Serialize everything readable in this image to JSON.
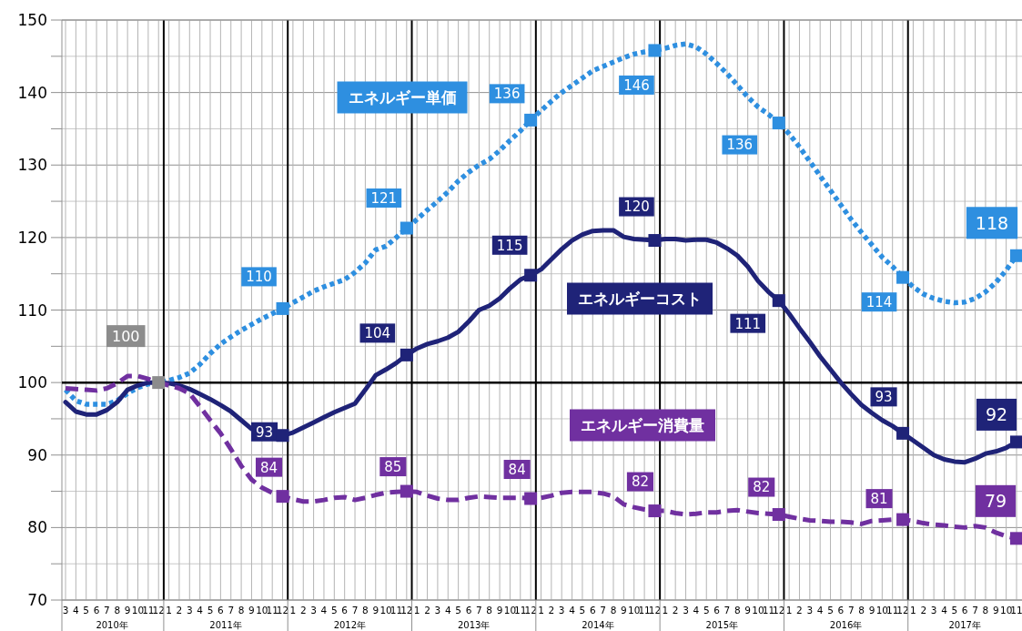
{
  "chart_data": {
    "type": "line",
    "x": [
      "2010-03",
      "2010-04",
      "2010-05",
      "2010-06",
      "2010-07",
      "2010-08",
      "2010-09",
      "2010-10",
      "2010-11",
      "2010-12",
      "2011-01",
      "2011-02",
      "2011-03",
      "2011-04",
      "2011-05",
      "2011-06",
      "2011-07",
      "2011-08",
      "2011-09",
      "2011-10",
      "2011-11",
      "2011-12",
      "2012-01",
      "2012-02",
      "2012-03",
      "2012-04",
      "2012-05",
      "2012-06",
      "2012-07",
      "2012-08",
      "2012-09",
      "2012-10",
      "2012-11",
      "2012-12",
      "2013-01",
      "2013-02",
      "2013-03",
      "2013-04",
      "2013-05",
      "2013-06",
      "2013-07",
      "2013-08",
      "2013-09",
      "2013-10",
      "2013-11",
      "2013-12",
      "2014-01",
      "2014-02",
      "2014-03",
      "2014-04",
      "2014-05",
      "2014-06",
      "2014-07",
      "2014-08",
      "2014-09",
      "2014-10",
      "2014-11",
      "2014-12",
      "2015-01",
      "2015-02",
      "2015-03",
      "2015-04",
      "2015-05",
      "2015-06",
      "2015-07",
      "2015-08",
      "2015-09",
      "2015-10",
      "2015-11",
      "2015-12",
      "2016-01",
      "2016-02",
      "2016-03",
      "2016-04",
      "2016-05",
      "2016-06",
      "2016-07",
      "2016-08",
      "2016-09",
      "2016-10",
      "2016-11",
      "2016-12",
      "2017-01",
      "2017-02",
      "2017-03",
      "2017-04",
      "2017-05",
      "2017-06",
      "2017-07",
      "2017-08",
      "2017-09",
      "2017-10",
      "2017-11"
    ],
    "xlim": [
      "2010-03",
      "2017-11"
    ],
    "xticks": [
      {
        "value": "2010-03",
        "label": "3"
      },
      {
        "value": "2010-04",
        "label": "4"
      },
      {
        "value": "2010-05",
        "label": "5"
      },
      {
        "value": "2010-06",
        "label": "6"
      },
      {
        "value": "2010-07",
        "label": "7"
      },
      {
        "value": "2010-08",
        "label": "8"
      },
      {
        "value": "2010-09",
        "label": "9"
      },
      {
        "value": "2010-10",
        "label": "10"
      },
      {
        "value": "2010-11",
        "label": "11"
      },
      {
        "value": "2010-12",
        "label": "12"
      },
      {
        "value": "2011-01",
        "label": "1"
      },
      {
        "value": "2011-02",
        "label": "2"
      },
      {
        "value": "2011-03",
        "label": "3"
      },
      {
        "value": "2011-04",
        "label": "4"
      },
      {
        "value": "2011-05",
        "label": "5"
      },
      {
        "value": "2011-06",
        "label": "6"
      },
      {
        "value": "2011-07",
        "label": "7"
      },
      {
        "value": "2011-08",
        "label": "8"
      },
      {
        "value": "2011-09",
        "label": "9"
      },
      {
        "value": "2011-10",
        "label": "10"
      },
      {
        "value": "2011-11",
        "label": "11"
      },
      {
        "value": "2011-12",
        "label": "12"
      },
      {
        "value": "2012-01",
        "label": "1"
      },
      {
        "value": "2012-02",
        "label": "2"
      },
      {
        "value": "2012-03",
        "label": "3"
      },
      {
        "value": "2012-04",
        "label": "4"
      },
      {
        "value": "2012-05",
        "label": "5"
      },
      {
        "value": "2012-06",
        "label": "6"
      },
      {
        "value": "2012-07",
        "label": "7"
      },
      {
        "value": "2012-08",
        "label": "8"
      },
      {
        "value": "2012-09",
        "label": "9"
      },
      {
        "value": "2012-10",
        "label": "10"
      },
      {
        "value": "2012-11",
        "label": "11"
      },
      {
        "value": "2012-12",
        "label": "12"
      },
      {
        "value": "2013-01",
        "label": "1"
      },
      {
        "value": "2013-02",
        "label": "2"
      },
      {
        "value": "2013-03",
        "label": "3"
      },
      {
        "value": "2013-04",
        "label": "4"
      },
      {
        "value": "2013-05",
        "label": "5"
      },
      {
        "value": "2013-06",
        "label": "6"
      },
      {
        "value": "2013-07",
        "label": "7"
      },
      {
        "value": "2013-08",
        "label": "8"
      },
      {
        "value": "2013-09",
        "label": "9"
      },
      {
        "value": "2013-10",
        "label": "10"
      },
      {
        "value": "2013-11",
        "label": "11"
      },
      {
        "value": "2013-12",
        "label": "12"
      },
      {
        "value": "2014-01",
        "label": "1"
      },
      {
        "value": "2014-02",
        "label": "2"
      },
      {
        "value": "2014-03",
        "label": "3"
      },
      {
        "value": "2014-04",
        "label": "4"
      },
      {
        "value": "2014-05",
        "label": "5"
      },
      {
        "value": "2014-06",
        "label": "6"
      },
      {
        "value": "2014-07",
        "label": "7"
      },
      {
        "value": "2014-08",
        "label": "8"
      },
      {
        "value": "2014-09",
        "label": "9"
      },
      {
        "value": "2014-10",
        "label": "10"
      },
      {
        "value": "2014-11",
        "label": "11"
      },
      {
        "value": "2014-12",
        "label": "12"
      },
      {
        "value": "2015-01",
        "label": "1"
      },
      {
        "value": "2015-02",
        "label": "2"
      },
      {
        "value": "2015-03",
        "label": "3"
      },
      {
        "value": "2015-04",
        "label": "4"
      },
      {
        "value": "2015-05",
        "label": "5"
      },
      {
        "value": "2015-06",
        "label": "6"
      },
      {
        "value": "2015-07",
        "label": "7"
      },
      {
        "value": "2015-08",
        "label": "8"
      },
      {
        "value": "2015-09",
        "label": "9"
      },
      {
        "value": "2015-10",
        "label": "10"
      },
      {
        "value": "2015-11",
        "label": "11"
      },
      {
        "value": "2015-12",
        "label": "12"
      },
      {
        "value": "2016-01",
        "label": "1"
      },
      {
        "value": "2016-02",
        "label": "2"
      },
      {
        "value": "2016-03",
        "label": "3"
      },
      {
        "value": "2016-04",
        "label": "4"
      },
      {
        "value": "2016-05",
        "label": "5"
      },
      {
        "value": "2016-06",
        "label": "6"
      },
      {
        "value": "2016-07",
        "label": "7"
      },
      {
        "value": "2016-08",
        "label": "8"
      },
      {
        "value": "2016-09",
        "label": "9"
      },
      {
        "value": "2016-10",
        "label": "10"
      },
      {
        "value": "2016-11",
        "label": "11"
      },
      {
        "value": "2016-12",
        "label": "12"
      },
      {
        "value": "2017-01",
        "label": "1"
      },
      {
        "value": "2017-02",
        "label": "2"
      },
      {
        "value": "2017-03",
        "label": "3"
      },
      {
        "value": "2017-04",
        "label": "4"
      },
      {
        "value": "2017-05",
        "label": "5"
      },
      {
        "value": "2017-06",
        "label": "6"
      },
      {
        "value": "2017-07",
        "label": "7"
      },
      {
        "value": "2017-08",
        "label": "8"
      },
      {
        "value": "2017-09",
        "label": "9"
      },
      {
        "value": "2017-10",
        "label": "10"
      },
      {
        "value": "2017-11",
        "label": "11"
      }
    ],
    "ylim": [
      70,
      150
    ],
    "yticks": [
      70,
      {
        "value": 75,
        "label": null
      },
      80,
      {
        "value": 85,
        "label": null
      },
      90,
      {
        "value": 95,
        "label": null
      },
      100,
      {
        "value": 105,
        "label": null
      },
      110,
      {
        "value": 115,
        "label": null
      },
      120,
      {
        "value": 125,
        "label": null
      },
      130,
      {
        "value": 135,
        "label": null
      },
      140,
      {
        "value": 145,
        "label": null
      },
      150
    ],
    "grid": true,
    "ref_lines": [
      {
        "axis": "y",
        "value": 100,
        "color": "#000000"
      }
    ],
    "annotations": [
      {
        "text": "100",
        "x": "2010-12",
        "y": 100
      },
      "2010年",
      "2011年",
      "2012年",
      "2013年",
      "2014年",
      "2015年",
      "2016年",
      "2017年"
    ],
    "series": [
      {
        "name": "エネルギー単価",
        "color": "#2e8fe0",
        "line_style": "dotted",
        "values": [
          99,
          97.5,
          97,
          97,
          97,
          97.5,
          98.5,
          99.3,
          99.8,
          100,
          100.3,
          100.7,
          101.3,
          102.5,
          104,
          105.3,
          106.3,
          107.2,
          108,
          108.8,
          109.5,
          110.2,
          111,
          111.8,
          112.6,
          113.2,
          113.7,
          114.2,
          115.2,
          116.5,
          118.3,
          118.8,
          120,
          121.3,
          122.5,
          123.8,
          125,
          126.3,
          127.8,
          129,
          130,
          130.8,
          132,
          133.4,
          134.7,
          136.2,
          137.5,
          138.8,
          140,
          141,
          142,
          143,
          143.6,
          144.2,
          144.8,
          145.3,
          145.6,
          145.8,
          146.1,
          146.5,
          146.7,
          146.3,
          145.3,
          144,
          142.6,
          141,
          139.4,
          138,
          137,
          135.8,
          134.3,
          132.5,
          130.5,
          128.5,
          126.5,
          124.5,
          122.5,
          120.7,
          119,
          117.3,
          116,
          114.5,
          113.2,
          112.2,
          111.6,
          111.2,
          111,
          111.1,
          111.6,
          112.5,
          113.8,
          115.5,
          117.5
        ],
        "value_labels": [
          null,
          null,
          null,
          null,
          null,
          null,
          null,
          null,
          null,
          null,
          null,
          null,
          null,
          null,
          null,
          null,
          null,
          null,
          null,
          null,
          null,
          "110",
          null,
          null,
          null,
          null,
          null,
          null,
          null,
          null,
          null,
          null,
          null,
          "121",
          null,
          null,
          null,
          null,
          null,
          null,
          null,
          null,
          null,
          null,
          null,
          "136",
          null,
          null,
          null,
          null,
          null,
          null,
          null,
          null,
          null,
          null,
          null,
          "146",
          null,
          null,
          null,
          null,
          null,
          null,
          null,
          null,
          null,
          null,
          null,
          "136",
          null,
          null,
          null,
          null,
          null,
          null,
          null,
          null,
          null,
          null,
          null,
          "114",
          null,
          null,
          null,
          null,
          null,
          null,
          null,
          null,
          null,
          null,
          "118"
        ]
      },
      {
        "name": "エネルギーコスト",
        "color": "#1f2378",
        "line_style": "solid",
        "values": [
          97.3,
          96,
          95.6,
          95.6,
          96.2,
          97.3,
          99,
          99.6,
          100,
          100,
          99.9,
          99.6,
          99.1,
          98.4,
          97.7,
          96.9,
          96,
          94.8,
          93.6,
          92.9,
          92.7,
          92.7,
          93.1,
          93.8,
          94.5,
          95.2,
          95.9,
          96.5,
          97.1,
          99,
          101,
          101.8,
          102.7,
          103.8,
          104.7,
          105.3,
          105.7,
          106.2,
          107,
          108.4,
          110,
          110.6,
          111.6,
          113,
          114.2,
          114.8,
          115.6,
          117,
          118.4,
          119.6,
          120.4,
          120.9,
          121,
          121,
          120.1,
          119.8,
          119.7,
          119.6,
          119.8,
          119.8,
          119.6,
          119.7,
          119.7,
          119.3,
          118.5,
          117.5,
          116,
          114,
          112.5,
          111.3,
          109.5,
          107.5,
          105.6,
          103.6,
          101.8,
          100,
          98.4,
          96.9,
          95.8,
          94.8,
          94,
          93,
          92,
          91,
          90,
          89.4,
          89.1,
          89,
          89.5,
          90.2,
          90.5,
          91,
          91.8
        ],
        "value_labels": [
          null,
          null,
          null,
          null,
          null,
          null,
          null,
          null,
          null,
          null,
          null,
          null,
          null,
          null,
          null,
          null,
          null,
          null,
          null,
          null,
          null,
          "93",
          null,
          null,
          null,
          null,
          null,
          null,
          null,
          null,
          null,
          null,
          null,
          "104",
          null,
          null,
          null,
          null,
          null,
          null,
          null,
          null,
          null,
          null,
          null,
          "115",
          null,
          null,
          null,
          null,
          null,
          null,
          null,
          null,
          null,
          null,
          null,
          "120",
          null,
          null,
          null,
          null,
          null,
          null,
          null,
          null,
          null,
          null,
          null,
          "111",
          null,
          null,
          null,
          null,
          null,
          null,
          null,
          null,
          null,
          null,
          null,
          "93",
          null,
          null,
          null,
          null,
          null,
          null,
          null,
          null,
          null,
          null,
          "92"
        ]
      },
      {
        "name": "エネルギー消費量",
        "color": "#7030a0",
        "line_style": "dashed",
        "values": [
          99.2,
          99.1,
          99,
          98.9,
          99.2,
          99.9,
          100.9,
          100.9,
          100.5,
          100,
          99.6,
          99.2,
          98.5,
          96.7,
          94.8,
          93,
          90.8,
          88.5,
          86.6,
          85.5,
          84.8,
          84.3,
          83.9,
          83.6,
          83.6,
          83.8,
          84.1,
          84.2,
          83.8,
          84.1,
          84.5,
          84.8,
          84.9,
          85,
          84.9,
          84.4,
          84,
          83.8,
          83.8,
          84.1,
          84.3,
          84.2,
          84.1,
          84.1,
          84.1,
          84,
          84.1,
          84.4,
          84.8,
          84.9,
          84.9,
          84.9,
          84.7,
          84.3,
          83.2,
          82.8,
          82.5,
          82.3,
          82.3,
          82,
          81.8,
          81.9,
          82.1,
          82.1,
          82.3,
          82.4,
          82.2,
          82,
          81.9,
          81.8,
          81.5,
          81.2,
          81,
          80.9,
          80.8,
          80.8,
          80.7,
          80.5,
          80.9,
          81,
          81.1,
          81.1,
          80.9,
          80.6,
          80.4,
          80.3,
          80.1,
          80,
          80.2,
          80,
          79.3,
          78.8,
          78.5
        ],
        "value_labels": [
          null,
          null,
          null,
          null,
          null,
          null,
          null,
          null,
          null,
          null,
          null,
          null,
          null,
          null,
          null,
          null,
          null,
          null,
          null,
          null,
          null,
          "84",
          null,
          null,
          null,
          null,
          null,
          null,
          null,
          null,
          null,
          null,
          null,
          "85",
          null,
          null,
          null,
          null,
          null,
          null,
          null,
          null,
          null,
          null,
          null,
          "84",
          null,
          null,
          null,
          null,
          null,
          null,
          null,
          null,
          null,
          null,
          null,
          "82",
          null,
          null,
          null,
          null,
          null,
          null,
          null,
          null,
          null,
          null,
          null,
          "82",
          null,
          null,
          null,
          null,
          null,
          null,
          null,
          null,
          null,
          null,
          null,
          "81",
          null,
          null,
          null,
          null,
          null,
          null,
          null,
          null,
          null,
          null,
          "79"
        ]
      }
    ]
  }
}
